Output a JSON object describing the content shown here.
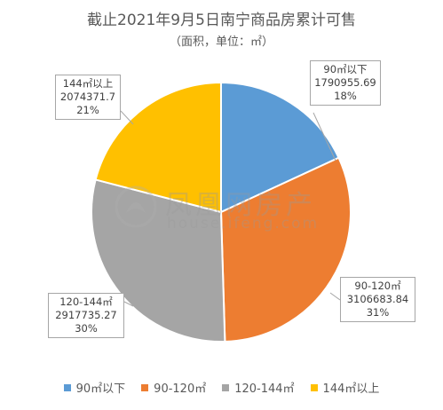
{
  "chart_data": {
    "type": "pie",
    "title": "截止2021年9月5日南宁商品房累计可售",
    "subtitle": "（面积，单位：㎡）",
    "slices": [
      {
        "label": "90㎡以下",
        "value": 1790955.69,
        "percent": "18%",
        "color": "#5b9bd5"
      },
      {
        "label": "90-120㎡",
        "value": 3106683.84,
        "percent": "31%",
        "color": "#ed7d31"
      },
      {
        "label": "120-144㎡",
        "value": 2917735.27,
        "percent": "30%",
        "color": "#a5a5a5"
      },
      {
        "label": "144㎡以上",
        "value": 2074371.7,
        "percent": "21%",
        "color": "#ffc000"
      }
    ],
    "value_labels": [
      "1790955.69",
      "3106683.84",
      "2917735.27",
      "2074371.7"
    ],
    "legend_position": "bottom"
  },
  "watermark": {
    "text": "凤凰网房产",
    "url": "house.ifeng.com"
  }
}
